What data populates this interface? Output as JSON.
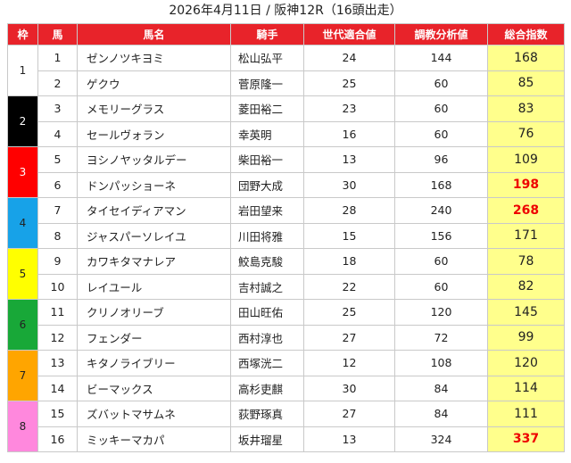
{
  "title": "2026年4月11日 / 阪神12R（16頭出走）",
  "headers": [
    "枠",
    "馬",
    "馬名",
    "騎手",
    "世代適合値",
    "調教分析値",
    "総合指数"
  ],
  "frame_colors": {
    "1": {
      "bg": "#ffffff",
      "fg": "#222222"
    },
    "2": {
      "bg": "#000000",
      "fg": "#ffffff"
    },
    "3": {
      "bg": "#ff0000",
      "fg": "#ffffff"
    },
    "4": {
      "bg": "#17a2e8",
      "fg": "#222222"
    },
    "5": {
      "bg": "#ffff00",
      "fg": "#222222"
    },
    "6": {
      "bg": "#18a838",
      "fg": "#222222"
    },
    "7": {
      "bg": "#ffa500",
      "fg": "#222222"
    },
    "8": {
      "bg": "#ff88dd",
      "fg": "#222222"
    }
  },
  "rows": [
    {
      "frame": "1",
      "num": "1",
      "name": "ゼンノツキヨミ",
      "jockey": "松山弘平",
      "gen": "24",
      "train": "144",
      "score": "168",
      "top": false
    },
    {
      "frame": "1",
      "num": "2",
      "name": "ゲクウ",
      "jockey": "菅原隆一",
      "gen": "25",
      "train": "60",
      "score": "85",
      "top": false
    },
    {
      "frame": "2",
      "num": "3",
      "name": "メモリーグラス",
      "jockey": "菱田裕二",
      "gen": "23",
      "train": "60",
      "score": "83",
      "top": false
    },
    {
      "frame": "2",
      "num": "4",
      "name": "セールヴォラン",
      "jockey": "幸英明",
      "gen": "16",
      "train": "60",
      "score": "76",
      "top": false
    },
    {
      "frame": "3",
      "num": "5",
      "name": "ヨシノヤッタルデー",
      "jockey": "柴田裕一",
      "gen": "13",
      "train": "96",
      "score": "109",
      "top": false
    },
    {
      "frame": "3",
      "num": "6",
      "name": "ドンパッショーネ",
      "jockey": "団野大成",
      "gen": "30",
      "train": "168",
      "score": "198",
      "top": true
    },
    {
      "frame": "4",
      "num": "7",
      "name": "タイセイディアマン",
      "jockey": "岩田望来",
      "gen": "28",
      "train": "240",
      "score": "268",
      "top": true
    },
    {
      "frame": "4",
      "num": "8",
      "name": "ジャスパーソレイユ",
      "jockey": "川田将雅",
      "gen": "15",
      "train": "156",
      "score": "171",
      "top": false
    },
    {
      "frame": "5",
      "num": "9",
      "name": "カワキタマナレア",
      "jockey": "鮫島克駿",
      "gen": "18",
      "train": "60",
      "score": "78",
      "top": false
    },
    {
      "frame": "5",
      "num": "10",
      "name": "レイユール",
      "jockey": "吉村誠之",
      "gen": "22",
      "train": "60",
      "score": "82",
      "top": false
    },
    {
      "frame": "6",
      "num": "11",
      "name": "クリノオリーブ",
      "jockey": "田山旺佑",
      "gen": "25",
      "train": "120",
      "score": "145",
      "top": false
    },
    {
      "frame": "6",
      "num": "12",
      "name": "フェンダー",
      "jockey": "西村淳也",
      "gen": "27",
      "train": "72",
      "score": "99",
      "top": false
    },
    {
      "frame": "7",
      "num": "13",
      "name": "キタノライブリー",
      "jockey": "西塚洸二",
      "gen": "12",
      "train": "108",
      "score": "120",
      "top": false
    },
    {
      "frame": "7",
      "num": "14",
      "name": "ビーマックス",
      "jockey": "高杉吏麒",
      "gen": "30",
      "train": "84",
      "score": "114",
      "top": false
    },
    {
      "frame": "8",
      "num": "15",
      "name": "ズバットマサムネ",
      "jockey": "荻野琢真",
      "gen": "27",
      "train": "84",
      "score": "111",
      "top": false
    },
    {
      "frame": "8",
      "num": "16",
      "name": "ミッキーマカパ",
      "jockey": "坂井瑠星",
      "gen": "13",
      "train": "324",
      "score": "337",
      "top": true
    }
  ]
}
